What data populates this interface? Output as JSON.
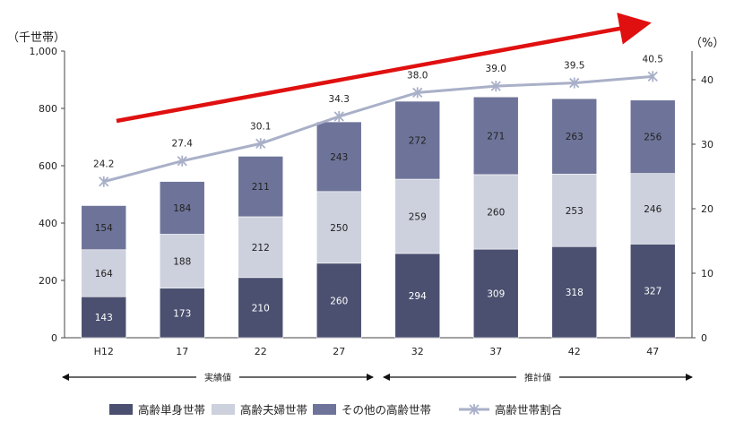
{
  "chart_data": {
    "type": "bar",
    "stacked": true,
    "categories": [
      "H12",
      "17",
      "22",
      "27",
      "32",
      "37",
      "42",
      "47"
    ],
    "series": [
      {
        "name": "高齢単身世帯",
        "values": [
          143,
          173,
          210,
          260,
          294,
          309,
          318,
          327
        ],
        "color": "#4b5070"
      },
      {
        "name": "高齢夫婦世帯",
        "values": [
          164,
          188,
          212,
          250,
          259,
          260,
          253,
          246
        ],
        "color": "#cdd0dd"
      },
      {
        "name": "その他の高齢世帯",
        "values": [
          154,
          184,
          211,
          243,
          272,
          271,
          263,
          256
        ],
        "color": "#6e7499"
      }
    ],
    "line_series": {
      "name": "高齢世帯割合",
      "values": [
        24.2,
        27.4,
        30.1,
        34.3,
        38.0,
        39.0,
        39.5,
        40.5
      ],
      "labels": [
        "24.2",
        "27.4",
        "30.1",
        "34.3",
        "38.0",
        "39.0",
        "39.5",
        "40.5"
      ],
      "color": "#a9b0c8"
    },
    "y_left": {
      "unit": "（千世帯）",
      "ylim": [
        0,
        1000
      ],
      "ticks": [
        0,
        200,
        400,
        600,
        800,
        1000
      ],
      "tick_labels": [
        "0",
        "200",
        "400",
        "600",
        "800",
        "1,000"
      ]
    },
    "y_right": {
      "unit": "（%）",
      "ylim": [
        0,
        44.44
      ],
      "ticks": [
        0,
        10,
        20,
        30,
        40
      ],
      "tick_labels": [
        "0",
        "10",
        "20",
        "30",
        "40"
      ]
    },
    "periods": [
      {
        "label": "実績値",
        "from": 0,
        "to": 3
      },
      {
        "label": "推計値",
        "from": 4,
        "to": 7
      }
    ],
    "trend_arrow_color": "#e01010",
    "legend_position": "bottom",
    "grid": false
  }
}
